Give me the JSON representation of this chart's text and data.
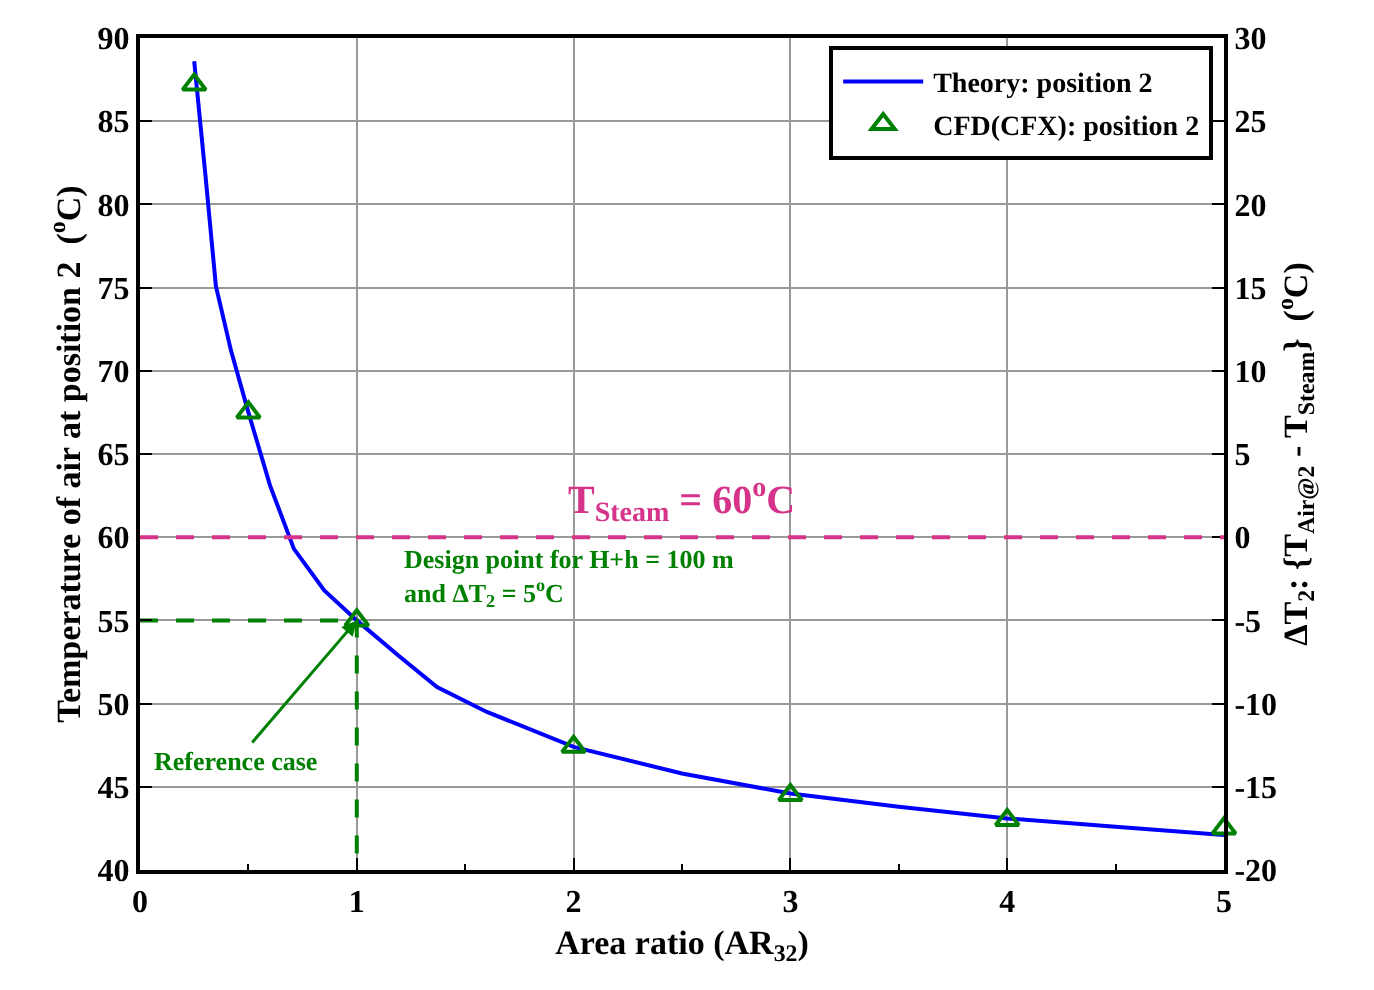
{
  "chart_data": {
    "type": "line",
    "xlabel": "Area ratio (AR$_{32}$)",
    "ylabel": "Temperature of air at position 2  ($^{o}$C)",
    "y2label": "ΔT$_{2}$: {T$_{Air@2}$ - T$_{Steam}$}  ($^{o}$C)",
    "xlim": [
      0,
      5
    ],
    "xticks": [
      0,
      1,
      2,
      3,
      4,
      5
    ],
    "ylim": [
      40,
      90
    ],
    "yticks": [
      40,
      45,
      50,
      55,
      60,
      65,
      70,
      75,
      80,
      85,
      90
    ],
    "y2lim": [
      -20,
      30
    ],
    "y2ticks": [
      -20,
      -15,
      -10,
      -5,
      0,
      5,
      10,
      15,
      20,
      25,
      30
    ],
    "grid": true,
    "legend": "top right",
    "series": [
      {
        "name": "Theory: position 2",
        "type": "line",
        "color": "#0000ff",
        "marker": "none",
        "line_style": "solid",
        "x": [
          0.25,
          0.3,
          0.35,
          0.42,
          0.5,
          0.6,
          0.71,
          0.85,
          1,
          1.2,
          1.37,
          1.6,
          2,
          2.5,
          3,
          3.5,
          4,
          4.5,
          5
        ],
        "values": [
          88.6,
          82,
          75.1,
          71.2,
          67.5,
          63.1,
          59.3,
          56.8,
          55,
          52.8,
          51,
          49.5,
          47.4,
          45.8,
          44.6,
          43.8,
          43.1,
          42.6,
          42.1
        ]
      },
      {
        "name": "CFD(CFX): position 2",
        "type": "scatter",
        "color": "#008000",
        "marker": "triangle",
        "x": [
          0.25,
          0.5,
          1,
          2,
          3,
          4,
          5
        ],
        "values": [
          87.2,
          67.5,
          55,
          47.4,
          44.5,
          43,
          42.5
        ]
      },
      {
        "color": "#008000",
        "marker": "none",
        "line_style": "dashed",
        "x": [
          0,
          1,
          1
        ],
        "values": [
          55,
          55,
          40
        ]
      }
    ],
    "ref_lines": [
      {
        "axis": "y",
        "value": 60,
        "label": "T$_{Steam}$ = 60$^{o}$C",
        "color": "#d6338a",
        "line_style": "dashed"
      }
    ],
    "annotations": [
      "Design point for H+h = 100 m\nand ΔT$_{2}$ = 5$^{o}$C",
      {
        "text": "Reference case",
        "x": 1,
        "y": 55
      }
    ]
  }
}
